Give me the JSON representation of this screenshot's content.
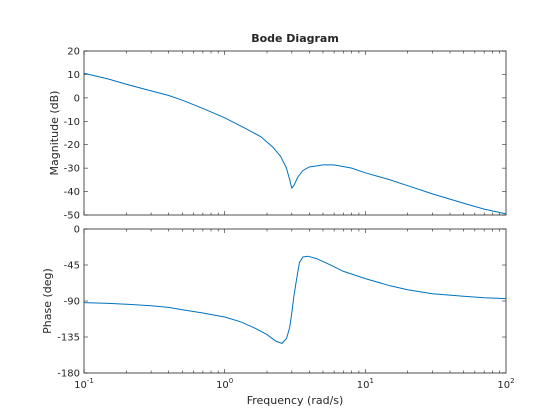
{
  "chart_data": {
    "type": "line",
    "title": "Bode Diagram",
    "xlabel": "Frequency  (rad/s)",
    "xscale": "log",
    "xlim": [
      0.1,
      100
    ],
    "xticks": [
      0.1,
      1,
      10,
      100
    ],
    "xtick_labels": [
      {
        "base": "10",
        "exp": "-1"
      },
      {
        "base": "10",
        "exp": "0"
      },
      {
        "base": "10",
        "exp": "1"
      },
      {
        "base": "10",
        "exp": "2"
      }
    ],
    "grid": false,
    "color": "#0072bd",
    "subplots": [
      {
        "name": "magnitude",
        "ylabel": "Magnitude (dB)",
        "ylim": [
          -50,
          20
        ],
        "yticks": [
          -50,
          -40,
          -30,
          -20,
          -10,
          0,
          10,
          20
        ],
        "ytick_labels": [
          "-50",
          "-40",
          "-30",
          "-20",
          "-10",
          "0",
          "10",
          "20"
        ],
        "series": [
          {
            "x": [
              0.1,
              0.15,
              0.2,
              0.3,
              0.4,
              0.5,
              0.7,
              1.0,
              1.4,
              1.8,
              2.2,
              2.5,
              2.75,
              2.9,
              3.0,
              3.1,
              3.3,
              3.6,
              4.0,
              5.0,
              6.0,
              8.0,
              10,
              15,
              20,
              30,
              50,
              70,
              100
            ],
            "y": [
              10.5,
              8.0,
              5.8,
              3.0,
              1.0,
              -1.0,
              -4.5,
              -8.5,
              -13.0,
              -16.5,
              -21.0,
              -25.0,
              -30.0,
              -35.0,
              -38.5,
              -37.5,
              -34.0,
              -31.0,
              -29.5,
              -28.6,
              -28.6,
              -30.0,
              -32.0,
              -35.0,
              -37.5,
              -41.0,
              -45.0,
              -47.5,
              -49.5
            ]
          }
        ]
      },
      {
        "name": "phase",
        "ylabel": "Phase (deg)",
        "ylim": [
          -180,
          0
        ],
        "yticks": [
          -180,
          -135,
          -90,
          -45,
          0
        ],
        "ytick_labels": [
          "-180",
          "-135",
          "-90",
          "-45",
          "0"
        ],
        "series": [
          {
            "x": [
              0.1,
              0.15,
              0.2,
              0.3,
              0.4,
              0.5,
              0.7,
              1.0,
              1.3,
              1.6,
              2.0,
              2.3,
              2.55,
              2.75,
              2.9,
              3.0,
              3.1,
              3.25,
              3.4,
              3.6,
              3.9,
              4.5,
              5.5,
              7.0,
              10,
              15,
              20,
              30,
              50,
              70,
              100
            ],
            "y": [
              -92,
              -93,
              -94,
              -96,
              -98,
              -101,
              -105,
              -110,
              -116,
              -123,
              -132,
              -140,
              -143,
              -137,
              -123,
              -105,
              -85,
              -62,
              -42,
              -35,
              -34,
              -37,
              -44,
              -53,
              -62,
              -71,
              -76,
              -81,
              -84,
              -86,
              -87
            ]
          }
        ]
      }
    ]
  }
}
